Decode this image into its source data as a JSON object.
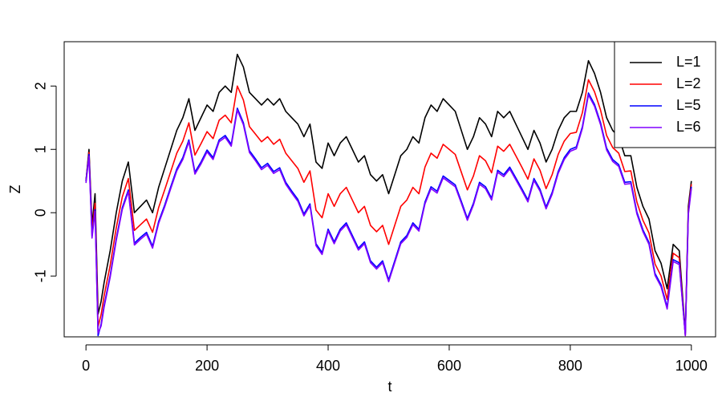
{
  "chart_data": {
    "type": "line",
    "xlabel": "t",
    "ylabel": "Z",
    "xlim": [
      -36,
      1040
    ],
    "ylim": [
      -1.96,
      2.7
    ],
    "xticks": [
      0,
      200,
      400,
      600,
      800,
      1000
    ],
    "yticks": [
      -1,
      0,
      1,
      2
    ],
    "legend": "topright",
    "x": [
      0,
      5,
      10,
      15,
      20,
      25,
      30,
      40,
      50,
      60,
      70,
      80,
      90,
      100,
      110,
      120,
      130,
      140,
      150,
      160,
      170,
      180,
      190,
      200,
      210,
      220,
      230,
      240,
      250,
      260,
      270,
      280,
      290,
      300,
      310,
      320,
      330,
      340,
      350,
      360,
      370,
      380,
      390,
      400,
      410,
      420,
      430,
      440,
      450,
      460,
      470,
      480,
      490,
      500,
      510,
      520,
      530,
      540,
      550,
      560,
      570,
      580,
      590,
      600,
      610,
      620,
      630,
      640,
      650,
      660,
      670,
      680,
      690,
      700,
      710,
      720,
      730,
      740,
      750,
      760,
      770,
      780,
      790,
      800,
      810,
      820,
      830,
      840,
      850,
      860,
      870,
      880,
      890,
      900,
      910,
      920,
      930,
      940,
      950,
      960,
      970,
      980,
      990,
      995,
      1000
    ],
    "series": [
      {
        "name": "L=1",
        "color": "#000000",
        "values": [
          0.5,
          1.0,
          -0.2,
          0.3,
          -1.6,
          -1.4,
          -1.1,
          -0.6,
          0.0,
          0.5,
          0.8,
          0.0,
          0.1,
          0.2,
          0.0,
          0.4,
          0.7,
          1.0,
          1.3,
          1.5,
          1.8,
          1.3,
          1.5,
          1.7,
          1.6,
          1.9,
          2.0,
          1.9,
          2.5,
          2.3,
          1.9,
          1.8,
          1.7,
          1.8,
          1.7,
          1.8,
          1.6,
          1.5,
          1.4,
          1.2,
          1.4,
          0.8,
          0.7,
          1.1,
          0.9,
          1.1,
          1.2,
          1.0,
          0.8,
          0.9,
          0.6,
          0.5,
          0.6,
          0.3,
          0.6,
          0.9,
          1.0,
          1.2,
          1.1,
          1.5,
          1.7,
          1.6,
          1.8,
          1.7,
          1.6,
          1.3,
          1.0,
          1.2,
          1.5,
          1.4,
          1.2,
          1.6,
          1.5,
          1.6,
          1.4,
          1.2,
          1.0,
          1.3,
          1.1,
          0.8,
          1.0,
          1.3,
          1.5,
          1.6,
          1.6,
          1.9,
          2.4,
          2.2,
          1.9,
          1.5,
          1.3,
          1.2,
          0.9,
          0.9,
          0.4,
          0.1,
          -0.1,
          -0.6,
          -0.8,
          -1.2,
          -0.5,
          -0.6,
          -1.9,
          0.1,
          0.5
        ]
      },
      {
        "name": "L=2",
        "color": "#ff0000",
        "values": [
          0.5,
          0.95,
          -0.3,
          0.15,
          -1.8,
          -1.61,
          -1.31,
          -0.83,
          -0.24,
          0.25,
          0.54,
          -0.28,
          -0.19,
          -0.1,
          -0.31,
          0.08,
          0.36,
          0.65,
          0.94,
          1.13,
          1.42,
          0.91,
          1.09,
          1.28,
          1.17,
          1.46,
          1.54,
          1.42,
          2.0,
          1.78,
          1.36,
          1.24,
          1.12,
          1.2,
          1.08,
          1.16,
          0.94,
          0.82,
          0.7,
          0.48,
          0.66,
          0.04,
          -0.08,
          0.3,
          0.1,
          0.3,
          0.4,
          0.2,
          0.0,
          0.1,
          -0.2,
          -0.3,
          -0.2,
          -0.5,
          -0.2,
          0.1,
          0.2,
          0.4,
          0.3,
          0.72,
          0.94,
          0.86,
          1.08,
          1.0,
          0.92,
          0.64,
          0.36,
          0.58,
          0.9,
          0.82,
          0.63,
          1.05,
          0.97,
          1.08,
          0.9,
          0.72,
          0.53,
          0.85,
          0.67,
          0.38,
          0.6,
          0.92,
          1.13,
          1.25,
          1.27,
          1.58,
          2.1,
          1.91,
          1.62,
          1.22,
          1.03,
          0.94,
          0.65,
          0.66,
          0.17,
          -0.12,
          -0.32,
          -0.81,
          -1.0,
          -1.37,
          -0.64,
          -0.71,
          -1.94,
          0.04,
          0.45
        ]
      },
      {
        "name": "L=5",
        "color": "#0000ff",
        "values": [
          0.5,
          0.92,
          -0.37,
          0.05,
          -1.94,
          -1.76,
          -1.46,
          -0.99,
          -0.41,
          0.08,
          0.36,
          -0.48,
          -0.39,
          -0.31,
          -0.53,
          -0.14,
          0.12,
          0.41,
          0.69,
          0.87,
          1.15,
          0.64,
          0.8,
          0.99,
          0.87,
          1.15,
          1.22,
          1.08,
          1.65,
          1.42,
          0.98,
          0.85,
          0.71,
          0.78,
          0.65,
          0.71,
          0.48,
          0.34,
          0.21,
          -0.02,
          0.14,
          -0.49,
          -0.63,
          -0.26,
          -0.46,
          -0.26,
          -0.16,
          -0.36,
          -0.56,
          -0.46,
          -0.76,
          -0.86,
          -0.76,
          -1.06,
          -0.76,
          -0.46,
          -0.36,
          -0.16,
          -0.26,
          0.17,
          0.41,
          0.34,
          0.58,
          0.51,
          0.44,
          0.18,
          -0.09,
          0.15,
          0.48,
          0.41,
          0.23,
          0.67,
          0.6,
          0.72,
          0.55,
          0.38,
          0.2,
          0.54,
          0.37,
          0.09,
          0.32,
          0.65,
          0.87,
          1.0,
          1.04,
          1.36,
          1.89,
          1.71,
          1.42,
          1.02,
          0.84,
          0.76,
          0.48,
          0.49,
          0.01,
          -0.27,
          -0.47,
          -0.96,
          -1.14,
          -1.49,
          -0.74,
          -0.79,
          -1.93,
          0.0,
          0.41
        ]
      },
      {
        "name": "L=6",
        "color": "#8000ff",
        "values": [
          0.47,
          0.89,
          -0.4,
          0.02,
          -1.9,
          -1.79,
          -1.49,
          -1.02,
          -0.44,
          0.05,
          0.33,
          -0.51,
          -0.42,
          -0.34,
          -0.56,
          -0.17,
          0.09,
          0.38,
          0.66,
          0.84,
          1.12,
          0.61,
          0.77,
          0.96,
          0.84,
          1.12,
          1.19,
          1.05,
          1.62,
          1.39,
          0.95,
          0.82,
          0.68,
          0.75,
          0.62,
          0.68,
          0.45,
          0.31,
          0.18,
          -0.05,
          0.11,
          -0.52,
          -0.66,
          -0.29,
          -0.49,
          -0.29,
          -0.19,
          -0.39,
          -0.59,
          -0.49,
          -0.79,
          -0.89,
          -0.79,
          -1.09,
          -0.79,
          -0.49,
          -0.39,
          -0.19,
          -0.29,
          0.14,
          0.38,
          0.31,
          0.55,
          0.48,
          0.41,
          0.15,
          -0.12,
          0.12,
          0.45,
          0.38,
          0.2,
          0.64,
          0.57,
          0.69,
          0.52,
          0.35,
          0.17,
          0.51,
          0.34,
          0.06,
          0.29,
          0.62,
          0.84,
          0.97,
          1.01,
          1.33,
          1.86,
          1.68,
          1.39,
          0.99,
          0.81,
          0.73,
          0.45,
          0.46,
          -0.02,
          -0.3,
          -0.5,
          -0.99,
          -1.17,
          -1.52,
          -0.77,
          -0.82,
          -1.94,
          -0.03,
          0.38
        ]
      }
    ]
  }
}
